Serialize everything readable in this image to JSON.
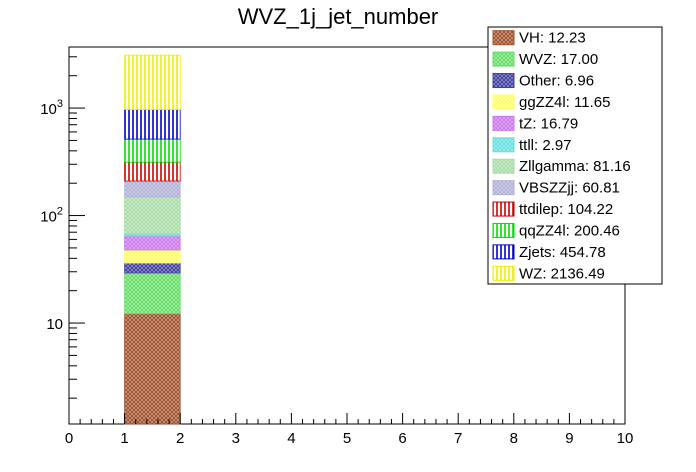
{
  "chart_data": {
    "type": "bar",
    "stacked": true,
    "title": "WVZ_1j_jet_number",
    "xlabel": "",
    "ylabel": "",
    "xlim": [
      0,
      10
    ],
    "ylim_log": [
      1.15,
      3700
    ],
    "y_scale": "log",
    "x_ticks": [
      "0",
      "1",
      "2",
      "3",
      "4",
      "5",
      "6",
      "7",
      "8",
      "9",
      "10"
    ],
    "y_ticks": [
      {
        "value": 10,
        "base": "10",
        "exp": ""
      },
      {
        "value": 100,
        "base": "10",
        "exp": "2"
      },
      {
        "value": 1000,
        "base": "10",
        "exp": "3"
      }
    ],
    "bin": [
      1,
      2
    ],
    "legend_position": "top-right",
    "series": [
      {
        "name": "VH",
        "label": "VH: 12.23",
        "value": 12.23,
        "color": "#a0522d",
        "pattern": "cross"
      },
      {
        "name": "WVZ",
        "label": "WVZ: 17.00",
        "value": 17.0,
        "color": "#66dd66",
        "pattern": "cross"
      },
      {
        "name": "Other",
        "label": "Other: 6.96",
        "value": 6.96,
        "color": "#4040a0",
        "pattern": "cross"
      },
      {
        "name": "ggZZ4l",
        "label": "ggZZ4l: 11.65",
        "value": 11.65,
        "color": "#ffff66",
        "pattern": "cross"
      },
      {
        "name": "tZ",
        "label": "tZ: 16.79",
        "value": 16.79,
        "color": "#cc77ee",
        "pattern": "cross"
      },
      {
        "name": "ttll",
        "label": "ttll: 2.97",
        "value": 2.97,
        "color": "#66e0e0",
        "pattern": "cross"
      },
      {
        "name": "Zllgamma",
        "label": "Zllgamma: 81.16",
        "value": 81.16,
        "color": "#a8dca8",
        "pattern": "cross"
      },
      {
        "name": "VBSZZjj",
        "label": "VBSZZjj: 60.81",
        "value": 60.81,
        "color": "#b0b0d8",
        "pattern": "cross"
      },
      {
        "name": "ttdilep",
        "label": "ttdilep: 104.22",
        "value": 104.22,
        "color": "#cc0000",
        "pattern": "vertical"
      },
      {
        "name": "qqZZ4l",
        "label": "qqZZ4l: 200.46",
        "value": 200.46,
        "color": "#00dd00",
        "pattern": "vertical"
      },
      {
        "name": "Zjets",
        "label": "Zjets: 454.78",
        "value": 454.78,
        "color": "#0000cc",
        "pattern": "vertical"
      },
      {
        "name": "WZ",
        "label": "WZ: 2136.49",
        "value": 2136.49,
        "color": "#eeee00",
        "pattern": "vertical"
      }
    ]
  }
}
